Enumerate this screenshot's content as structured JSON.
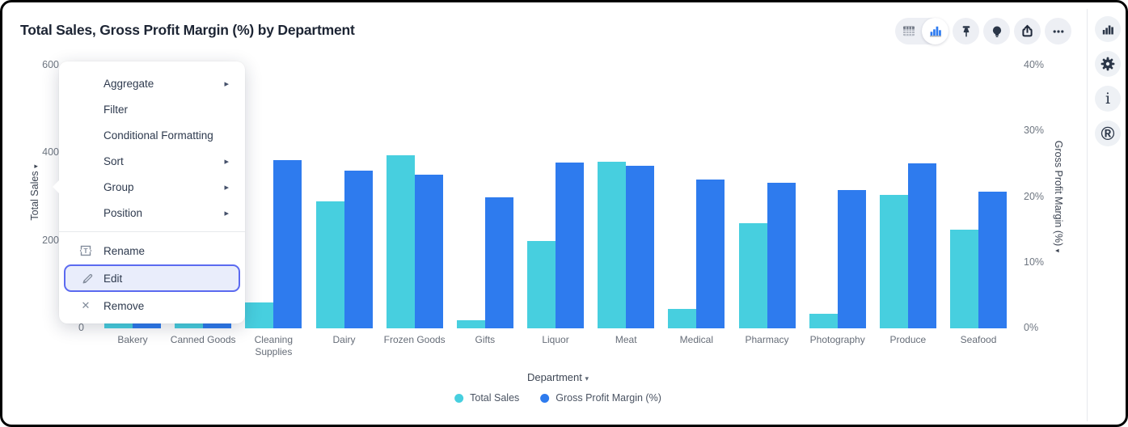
{
  "header": {
    "title": "Total Sales, Gross Profit Margin (%) by Department"
  },
  "toolbar": {
    "view_toggle": {
      "selected": "chart-view",
      "options": [
        {
          "name": "table-view"
        },
        {
          "name": "chart-view"
        }
      ]
    },
    "buttons": [
      {
        "name": "pin"
      },
      {
        "name": "insights"
      },
      {
        "name": "export"
      },
      {
        "name": "more-options"
      }
    ]
  },
  "side_toolbar": {
    "buttons": [
      {
        "name": "chart-type"
      },
      {
        "name": "settings"
      },
      {
        "name": "info"
      },
      {
        "name": "r-logo"
      }
    ]
  },
  "context_menu": {
    "items": [
      {
        "label": "Aggregate",
        "submenu": true
      },
      {
        "label": "Filter"
      },
      {
        "label": "Conditional Formatting"
      },
      {
        "label": "Sort",
        "submenu": true
      },
      {
        "label": "Group",
        "submenu": true
      },
      {
        "label": "Position",
        "submenu": true
      },
      {
        "divider": true
      },
      {
        "label": "Rename",
        "icon": "rename-icon"
      },
      {
        "label": "Edit",
        "icon": "pencil-icon",
        "highlighted": true
      },
      {
        "label": "Remove",
        "icon": "x-icon"
      }
    ],
    "highlight_color": "#5b6af0",
    "highlight_bg": "#e9edfb"
  },
  "chart_data": {
    "type": "bar",
    "title": "Total Sales, Gross Profit Margin (%) by Department",
    "categories": [
      "Bakery",
      "Canned Goods",
      "Cleaning Supplies",
      "Dairy",
      "Frozen Goods",
      "Gifts",
      "Liquor",
      "Meat",
      "Medical",
      "Pharmacy",
      "Photography",
      "Produce",
      "Seafood"
    ],
    "series": [
      {
        "name": "Total Sales",
        "axis": "left",
        "color": "#47cfdf",
        "values": [
          30,
          30,
          60,
          290,
          395,
          18,
          200,
          380,
          45,
          240,
          33,
          305,
          225
        ]
      },
      {
        "name": "Gross Profit Margin (%)",
        "axis": "right",
        "color": "#2e7bee",
        "values": [
          2,
          2,
          25.6,
          24,
          23.4,
          20,
          25.2,
          24.7,
          22.7,
          22.1,
          21,
          25.1,
          20.8
        ]
      }
    ],
    "left_axis": {
      "label": "Total Sales",
      "range": [
        0,
        600
      ],
      "ticks": [
        "600",
        "400",
        "200",
        "0"
      ]
    },
    "right_axis": {
      "label": "Gross Profit Margin (%)",
      "range": [
        0,
        40
      ],
      "ticks": [
        "40%",
        "30%",
        "20%",
        "10%",
        "0%"
      ]
    },
    "x_axis": {
      "label": "Department"
    },
    "legend": [
      {
        "label": "Total Sales",
        "color": "#47cfdf"
      },
      {
        "label": "Gross Profit Margin (%)",
        "color": "#2e7bee"
      }
    ],
    "grid": false,
    "legend_position": "bottom"
  }
}
